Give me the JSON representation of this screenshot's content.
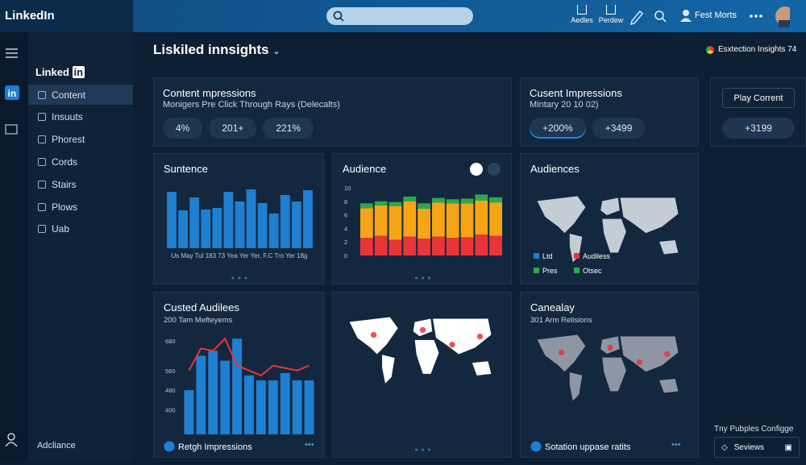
{
  "topbar": {
    "logo": "LinkedIn",
    "nav": [
      "Aedles",
      "Perdew"
    ],
    "profile": "Fest Morts"
  },
  "sidebar": {
    "logo": "Linked",
    "logo_mark": "in",
    "items": [
      "Content",
      "Insuuts",
      "Phorest",
      "Cords",
      "Stairs",
      "Plows",
      "Uab"
    ],
    "footer": "Adcliance"
  },
  "header": {
    "title": "Liskiled innsights",
    "right": "Esxtection Insights 74"
  },
  "cards": [
    {
      "title": "Content mpressions",
      "subtitle": "Monigers Pre Click Through Rays (Delecalts)",
      "pills": [
        "4%",
        "201+",
        "221%"
      ]
    },
    {
      "title": "Cusent Impressions",
      "subtitle": "Mintary 20 10 02)",
      "pills": [
        "+200%",
        "+3499"
      ]
    },
    {
      "button": "Play Corrent",
      "pills": [
        "+3199"
      ]
    }
  ],
  "charts": [
    {
      "type": "bar",
      "title": "Suntence",
      "x_labels": "Us May Tul 183 73 Yea Yer Yer, F.C Tro Yer 18g",
      "color": "#1f7fd0",
      "values": [
        70,
        47,
        63,
        48,
        50,
        70,
        58,
        73,
        56,
        43,
        66,
        58,
        72
      ]
    },
    {
      "type": "stacked_bar",
      "title": "Audience",
      "ylim": [
        0,
        10
      ],
      "yticks": [
        0,
        2,
        4,
        6,
        8,
        10
      ],
      "series": [
        {
          "color": "#e8353a",
          "values": [
            2.6,
            2.9,
            2.3,
            2.8,
            2.5,
            2.8,
            2.6,
            2.7,
            3.1,
            2.9
          ]
        },
        {
          "color": "#f5a515",
          "values": [
            4.4,
            4.5,
            5.0,
            5.2,
            4.4,
            5.0,
            5.1,
            5.0,
            5.0,
            4.9
          ]
        },
        {
          "color": "#2fa84a",
          "values": [
            0.7,
            0.6,
            0.6,
            0.7,
            0.8,
            0.7,
            0.6,
            0.7,
            0.9,
            0.8
          ]
        }
      ]
    },
    {
      "type": "map",
      "title": "Audiences",
      "land_color": "#c4ccd6",
      "legend": [
        {
          "label": "Ltd",
          "color": "#1f7fd0"
        },
        {
          "label": "Audiless",
          "color": "#e8353a"
        },
        {
          "label": "Pres",
          "color": "#2fa84a"
        },
        {
          "label": "Otsec",
          "color": "#2fa84a"
        }
      ]
    },
    {
      "type": "bar_line",
      "title": "Custed Audilees",
      "subtitle": "200 Tam Mefteyems",
      "footer": "Retgh Impressions",
      "ylim": [
        300,
        720
      ],
      "yticks": [
        400,
        480,
        560,
        680
      ],
      "series": [
        {
          "kind": "bar",
          "color": "#1f7fd0",
          "values": [
            480,
            620,
            640,
            600,
            690,
            540,
            520,
            520,
            550,
            520,
            520
          ]
        },
        {
          "kind": "line",
          "color": "#e8353a",
          "values": [
            560,
            650,
            640,
            690,
            580,
            560,
            540,
            580,
            570,
            560,
            580
          ]
        }
      ]
    },
    {
      "type": "map",
      "land_color": "#ffffff"
    },
    {
      "type": "map",
      "title": "Canealay",
      "subtitle": "301 Arm Relisions",
      "footer": "Sotation uppase ratits",
      "land_color": "#8d96a2"
    }
  ],
  "side_panel": {
    "title": "Tny Pubples Configge",
    "button": "Seviews"
  }
}
